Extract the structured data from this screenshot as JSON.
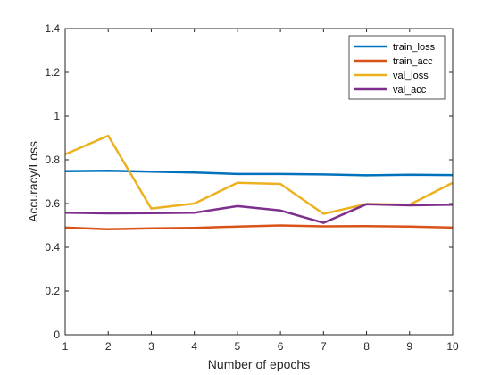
{
  "chart_data": {
    "type": "line",
    "title": "",
    "xlabel": "Number of epochs",
    "ylabel": "Accuracy/Loss",
    "xlim": [
      1,
      10
    ],
    "ylim": [
      0,
      1.4
    ],
    "x": [
      1,
      2,
      3,
      4,
      5,
      6,
      7,
      8,
      9,
      10
    ],
    "xticks": [
      "1",
      "2",
      "3",
      "4",
      "5",
      "6",
      "7",
      "8",
      "9",
      "10"
    ],
    "yticks": [
      "0",
      "0.2",
      "0.4",
      "0.6",
      "0.8",
      "1",
      "1.2",
      "1.4"
    ],
    "ytick_values": [
      0,
      0.2,
      0.4,
      0.6,
      0.8,
      1,
      1.2,
      1.4
    ],
    "grid": false,
    "legend_position": "top-right",
    "series": [
      {
        "name": "train_loss",
        "color": "#0072BD",
        "values": [
          0.748,
          0.75,
          0.746,
          0.742,
          0.735,
          0.735,
          0.733,
          0.729,
          0.732,
          0.73
        ]
      },
      {
        "name": "train_acc",
        "color": "#D95319",
        "values": [
          0.49,
          0.483,
          0.487,
          0.489,
          0.495,
          0.5,
          0.496,
          0.497,
          0.495,
          0.49
        ]
      },
      {
        "name": "val_loss",
        "color": "#EDB120",
        "values": [
          0.825,
          0.91,
          0.577,
          0.6,
          0.695,
          0.69,
          0.553,
          0.598,
          0.595,
          0.695
        ]
      },
      {
        "name": "val_acc",
        "color": "#7E2F8E",
        "values": [
          0.558,
          0.555,
          0.556,
          0.558,
          0.588,
          0.568,
          0.512,
          0.597,
          0.592,
          0.595
        ]
      }
    ]
  }
}
